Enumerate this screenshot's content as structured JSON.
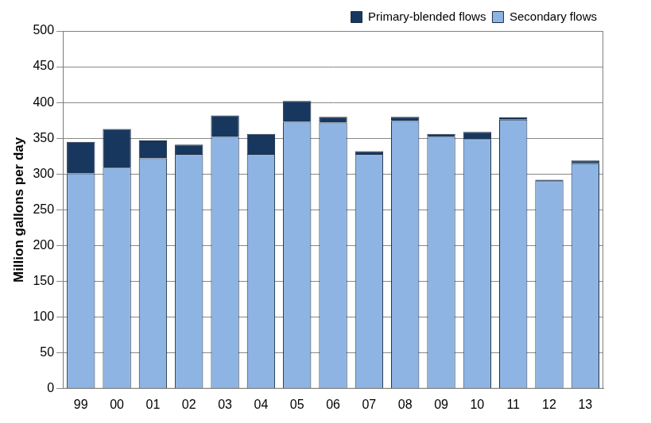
{
  "chart_data": {
    "type": "bar",
    "stacked": true,
    "ylabel": "Million gallons per day",
    "categories": [
      "99",
      "00",
      "01",
      "02",
      "03",
      "04",
      "05",
      "06",
      "07",
      "08",
      "09",
      "10",
      "11",
      "12",
      "13"
    ],
    "series": [
      {
        "name": "Secondary flows",
        "color": "#8eb4e3",
        "values": [
          301,
          309,
          322,
          328,
          352,
          328,
          373,
          372,
          328,
          374,
          352,
          349,
          376,
          290,
          315
        ]
      },
      {
        "name": "Primary-blended flows",
        "color": "#17375e",
        "values": [
          44,
          54,
          25,
          13,
          30,
          28,
          29,
          8,
          4,
          6,
          4,
          10,
          3,
          2,
          4
        ]
      }
    ],
    "ylim": [
      0,
      500
    ],
    "yticks": [
      0,
      50,
      100,
      150,
      200,
      250,
      300,
      350,
      400,
      450,
      500
    ],
    "grid": true,
    "legend": "upper right"
  }
}
